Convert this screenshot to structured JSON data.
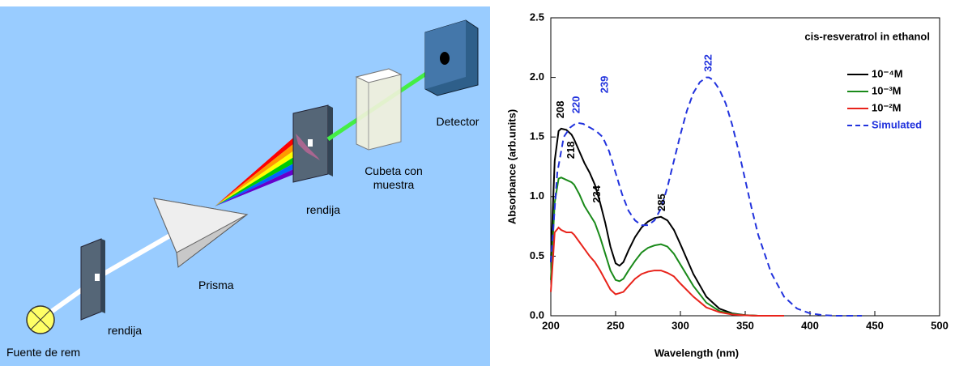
{
  "diagram": {
    "labels": [
      "Fuente de rem",
      "rendija",
      "Prisma",
      "rendija",
      "Cubeta con",
      "muestra",
      "Detector"
    ]
  },
  "chart_data": {
    "type": "line",
    "title": "cis-resveratrol in ethanol",
    "x_label": "Wavelength (nm)",
    "y_label": "Absorbance (arb.units)",
    "xlim": [
      200,
      500
    ],
    "ylim": [
      0,
      2.5
    ],
    "xticks": [
      200,
      250,
      300,
      350,
      400,
      450,
      500
    ],
    "yticks": [
      {
        "value": 0,
        "label": "0.0"
      },
      0.5,
      {
        "value": 1,
        "label": "1.0"
      },
      1.5,
      {
        "value": 2,
        "label": "2.0"
      },
      2.5
    ],
    "legend": "upper right",
    "x": [
      200,
      203,
      206,
      208,
      212,
      216,
      218,
      222,
      226,
      230,
      234,
      238,
      242,
      246,
      250,
      253,
      256,
      260,
      265,
      270,
      275,
      280,
      285,
      290,
      295,
      300,
      310,
      320,
      330,
      340,
      350,
      360,
      370,
      380
    ],
    "series": [
      {
        "name": "10⁻⁴M",
        "color": "#000000",
        "values": [
          0.45,
          1.3,
          1.55,
          1.57,
          1.56,
          1.52,
          1.48,
          1.38,
          1.28,
          1.2,
          1.1,
          0.95,
          0.78,
          0.58,
          0.44,
          0.42,
          0.45,
          0.55,
          0.66,
          0.74,
          0.79,
          0.82,
          0.83,
          0.8,
          0.72,
          0.6,
          0.35,
          0.16,
          0.06,
          0.02,
          0.005,
          0,
          0,
          0
        ]
      },
      {
        "name": "10⁻³M",
        "color": "#1a8a1a",
        "values": [
          0.3,
          0.95,
          1.15,
          1.16,
          1.14,
          1.12,
          1.1,
          1.02,
          0.92,
          0.85,
          0.78,
          0.66,
          0.52,
          0.38,
          0.3,
          0.29,
          0.31,
          0.38,
          0.46,
          0.53,
          0.57,
          0.59,
          0.6,
          0.58,
          0.52,
          0.43,
          0.25,
          0.11,
          0.04,
          0.015,
          0.004,
          0,
          0,
          0
        ]
      },
      {
        "name": "10⁻²M",
        "color": "#e8231b",
        "values": [
          0.2,
          0.7,
          0.74,
          0.72,
          0.7,
          0.7,
          0.68,
          0.62,
          0.56,
          0.5,
          0.45,
          0.38,
          0.3,
          0.22,
          0.18,
          0.19,
          0.2,
          0.25,
          0.31,
          0.35,
          0.37,
          0.38,
          0.38,
          0.36,
          0.33,
          0.27,
          0.16,
          0.07,
          0.03,
          0.01,
          0.003,
          0,
          0,
          0
        ]
      },
      {
        "name": "Simulated",
        "color": "#2233dd",
        "dash": true,
        "x": [
          200,
          205,
          210,
          215,
          220,
          225,
          230,
          235,
          240,
          245,
          250,
          255,
          260,
          265,
          270,
          275,
          280,
          285,
          290,
          295,
          300,
          305,
          310,
          315,
          320,
          322,
          325,
          330,
          335,
          340,
          345,
          350,
          355,
          360,
          370,
          380,
          390,
          400,
          410,
          420,
          430,
          440
        ],
        "values": [
          0.45,
          1.2,
          1.5,
          1.58,
          1.62,
          1.61,
          1.58,
          1.55,
          1.5,
          1.38,
          1.2,
          1.02,
          0.88,
          0.8,
          0.76,
          0.76,
          0.8,
          0.9,
          1.08,
          1.3,
          1.52,
          1.72,
          1.87,
          1.96,
          2.0,
          2.0,
          1.98,
          1.9,
          1.78,
          1.6,
          1.38,
          1.14,
          0.9,
          0.68,
          0.36,
          0.16,
          0.06,
          0.02,
          0.005,
          0,
          0,
          0
        ]
      }
    ],
    "annotations": [
      {
        "text": "208",
        "x": 208,
        "y": 1.73,
        "color": "#000000"
      },
      {
        "text": "218",
        "x": 216,
        "y": 1.39,
        "color": "#000000"
      },
      {
        "text": "234",
        "x": 236,
        "y": 1.02,
        "color": "#000000"
      },
      {
        "text": "285",
        "x": 286,
        "y": 0.95,
        "color": "#000000"
      },
      {
        "text": "220",
        "x": 220,
        "y": 1.77,
        "color": "#2233dd"
      },
      {
        "text": "239",
        "x": 242,
        "y": 1.94,
        "color": "#2233dd"
      },
      {
        "text": "322",
        "x": 322,
        "y": 2.12,
        "color": "#2233dd"
      }
    ]
  }
}
